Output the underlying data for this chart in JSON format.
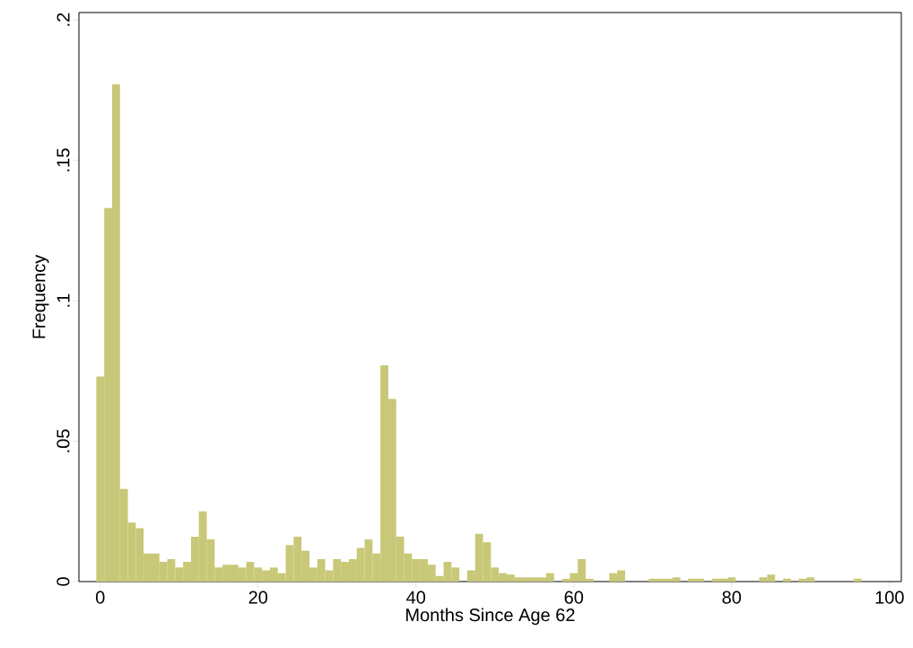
{
  "chart_data": {
    "type": "histogram",
    "xlabel": "Months Since Age 62",
    "ylabel": "Frequency",
    "color": "#c8c878",
    "bins": [
      -0.5,
      0.5,
      1.5,
      2.5,
      3.5,
      4.5,
      5.5,
      6.5,
      7.5,
      8.5,
      9.5,
      10.5,
      11.5,
      12.5,
      13.5,
      14.5,
      15.5,
      16.5,
      17.5,
      18.5,
      19.5,
      20.5,
      21.5,
      22.5,
      23.5,
      24.5,
      25.5,
      26.5,
      27.5,
      28.5,
      29.5,
      30.5,
      31.5,
      32.5,
      33.5,
      34.5,
      35.5,
      36.5,
      37.5,
      38.5,
      39.5,
      40.5,
      41.5,
      42.5,
      43.5,
      44.5,
      45.5,
      46.5,
      47.5,
      48.5,
      49.5,
      50.5,
      51.5,
      52.5,
      53.5,
      54.5,
      55.5,
      56.5,
      57.5,
      58.5,
      59.5,
      60.5,
      61.5,
      62.5,
      63.5,
      64.5,
      65.5,
      66.5,
      67.5,
      68.5,
      69.5,
      70.5,
      71.5,
      72.5,
      73.5,
      74.5,
      75.5,
      76.5,
      77.5,
      78.5,
      79.5,
      80.5,
      81.5,
      82.5,
      83.5,
      84.5,
      85.5,
      86.5,
      87.5,
      88.5,
      89.5,
      90.5,
      91.5,
      92.5,
      93.5,
      94.5,
      95.5,
      96.5
    ],
    "values": [
      0.073,
      0.133,
      0.177,
      0.033,
      0.021,
      0.019,
      0.01,
      0.01,
      0.007,
      0.008,
      0.005,
      0.007,
      0.016,
      0.025,
      0.015,
      0.005,
      0.006,
      0.006,
      0.005,
      0.007,
      0.005,
      0.004,
      0.005,
      0.003,
      0.013,
      0.016,
      0.011,
      0.005,
      0.008,
      0.004,
      0.008,
      0.007,
      0.008,
      0.012,
      0.015,
      0.01,
      0.077,
      0.065,
      0.016,
      0.01,
      0.008,
      0.008,
      0.006,
      0.002,
      0.007,
      0.005,
      0,
      0.004,
      0.017,
      0.014,
      0.005,
      0.003,
      0.0025,
      0.0015,
      0.0015,
      0.0015,
      0.0015,
      0.003,
      0,
      0.001,
      0.003,
      0.008,
      0.001,
      0,
      0,
      0.003,
      0.004,
      0,
      0,
      0,
      0.001,
      0.001,
      0.001,
      0.0015,
      0,
      0.001,
      0.001,
      0,
      0.001,
      0.001,
      0.0015,
      0,
      0,
      0,
      0.0015,
      0.0025,
      0,
      0.001,
      0,
      0.001,
      0.0015,
      0,
      0,
      0,
      0,
      0,
      0.001
    ],
    "xlim": [
      -2.7,
      101.5
    ],
    "ylim": [
      0,
      0.2026
    ],
    "xticks": [
      0,
      20,
      40,
      60,
      80,
      100
    ],
    "yticks": [
      0,
      {
        "value": 0.05,
        "label": ".05"
      },
      {
        "value": 0.1,
        "label": ".1"
      },
      {
        "value": 0.15,
        "label": ".15"
      },
      {
        "value": 0.2,
        "label": ".2"
      }
    ]
  }
}
